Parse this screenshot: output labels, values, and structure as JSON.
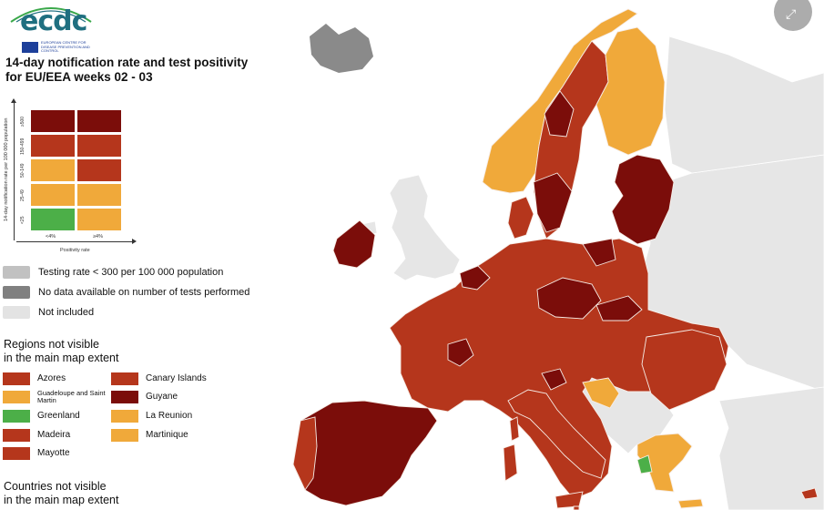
{
  "logo": {
    "text": "ecdc",
    "subtitle": "EUROPEAN CENTRE FOR DISEASE PREVENTION AND CONTROL",
    "icon": "ecdc-logo"
  },
  "title_line1": "14-day notification rate and test positivity",
  "title_line2": "for EU/EEA weeks 02 - 03",
  "matrix": {
    "y_title": "14-day notification rate per 100 000 population",
    "y_labels": [
      "≥500",
      "150-499",
      "50-149",
      "25-49",
      "<25"
    ],
    "x_title": "Positivity rate",
    "x_labels": [
      "<4%",
      "≥4%"
    ],
    "cells": [
      [
        "#7b0d0a",
        "#7b0d0a"
      ],
      [
        "#b5361c",
        "#b5361c"
      ],
      [
        "#f0a93a",
        "#b5361c"
      ],
      [
        "#f0a93a",
        "#f0a93a"
      ],
      [
        "#4caf48",
        "#f0a93a"
      ]
    ]
  },
  "status_legend": [
    {
      "label": "Testing rate < 300 per 100 000 population",
      "color": "#c1c1c1"
    },
    {
      "label": "No data available on number of tests performed",
      "color": "#808080"
    },
    {
      "label": "Not included",
      "color": "#e3e3e3"
    }
  ],
  "regions_title_1": "Regions not visible",
  "regions_title_2": "in the main map extent",
  "regions": [
    {
      "label": "Azores",
      "color": "#b5361c"
    },
    {
      "label": "Canary Islands",
      "color": "#b5361c"
    },
    {
      "label": "Guadeloupe and Saint Martin",
      "color": "#f0a93a"
    },
    {
      "label": "Guyane",
      "color": "#7b0d0a"
    },
    {
      "label": "Greenland",
      "color": "#4caf48"
    },
    {
      "label": "La Reunion",
      "color": "#f0a93a"
    },
    {
      "label": "Madeira",
      "color": "#b5361c"
    },
    {
      "label": "Martinique",
      "color": "#f0a93a"
    },
    {
      "label": "Mayotte",
      "color": "#b5361c"
    }
  ],
  "countries_title_1": "Countries not visible",
  "countries_title_2": "in the main map extent",
  "expand_icon": "expand-icon",
  "colors": {
    "dark_red": "#7b0d0a",
    "red": "#b5361c",
    "orange": "#f0a93a",
    "green": "#4caf48",
    "grey_light": "#e3e3e3",
    "grey_mid": "#c1c1c1",
    "grey_dark": "#808080",
    "sea": "#ffffff"
  }
}
